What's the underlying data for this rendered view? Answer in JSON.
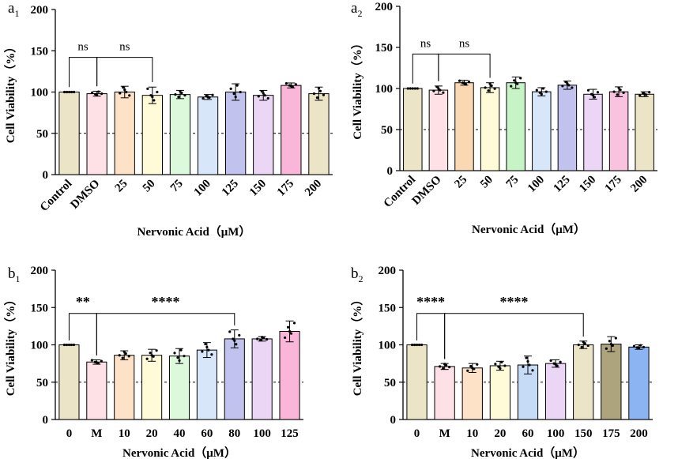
{
  "chart_data": [
    {
      "id": "a1",
      "panel_label": "a",
      "panel_sub": "1",
      "type": "bar",
      "ylabel": "Cell Viability（%）",
      "xlabel": "Nervonic Acid（μM）",
      "ylim": [
        0,
        200
      ],
      "yticks": [
        "0",
        "50",
        "100",
        "150",
        "200"
      ],
      "reference_line": 50,
      "rotate_labels": true,
      "categories": [
        "Control",
        "DMSO",
        "25",
        "50",
        "75",
        "100",
        "125",
        "150",
        "175",
        "200"
      ],
      "values": [
        100,
        98,
        100,
        96,
        97,
        94,
        100,
        96,
        108,
        98
      ],
      "errors": [
        0,
        3,
        7,
        10,
        5,
        3,
        10,
        6,
        3,
        8
      ],
      "colors": [
        "#ece4c7",
        "#fde1e6",
        "#fde2c8",
        "#fffbd9",
        "#dcf9dc",
        "#d8e6fa",
        "#c2c2ef",
        "#ecd6f6",
        "#f9b6d9",
        "#ece4c7"
      ],
      "brackets": [
        {
          "from": 0,
          "to": 1,
          "label": "ns"
        },
        {
          "from": 1,
          "to": 3,
          "label": "ns"
        }
      ]
    },
    {
      "id": "a2",
      "panel_label": "a",
      "panel_sub": "2",
      "type": "bar",
      "ylabel": "Cell Viability（%）",
      "xlabel": "Nervonic Acid（μM）",
      "ylim": [
        0,
        200
      ],
      "yticks": [
        "0",
        "50",
        "100",
        "150",
        "200"
      ],
      "reference_line": 50,
      "rotate_labels": true,
      "categories": [
        "Control",
        "DMSO",
        "25",
        "50",
        "75",
        "100",
        "125",
        "150",
        "175",
        "200"
      ],
      "values": [
        100,
        98,
        107,
        101,
        107,
        96,
        104,
        93,
        96,
        93
      ],
      "errors": [
        0,
        5,
        3,
        6,
        7,
        5,
        5,
        6,
        6,
        3
      ],
      "colors": [
        "#ece4c7",
        "#fde1e6",
        "#fbd8b4",
        "#fffbd9",
        "#c6f4c6",
        "#d8e6fa",
        "#c2c2ef",
        "#ecd6f6",
        "#f9c2df",
        "#ece4c7"
      ],
      "brackets": [
        {
          "from": 0,
          "to": 1,
          "label": "ns"
        },
        {
          "from": 1,
          "to": 3,
          "label": "ns"
        }
      ]
    },
    {
      "id": "b1",
      "panel_label": "b",
      "panel_sub": "1",
      "type": "bar",
      "ylabel": "Cell Viability（%）",
      "xlabel": "Nervonic Acid（μM）",
      "ylim": [
        0,
        200
      ],
      "yticks": [
        "0",
        "50",
        "100",
        "150",
        "200"
      ],
      "reference_line": 50,
      "rotate_labels": false,
      "categories": [
        "0",
        "M",
        "10",
        "20",
        "40",
        "60",
        "80",
        "100",
        "125"
      ],
      "values": [
        100,
        77,
        86,
        86,
        85,
        93,
        108,
        108,
        118
      ],
      "errors": [
        0,
        3,
        6,
        8,
        10,
        10,
        12,
        3,
        14
      ],
      "colors": [
        "#ece4c7",
        "#fde1e6",
        "#fde2c8",
        "#fffbd9",
        "#dcf9dc",
        "#d8e6fa",
        "#c2c2ef",
        "#ecd6f6",
        "#f9b6d9"
      ],
      "brackets": [
        {
          "from": 0,
          "to": 1,
          "label": "**"
        },
        {
          "from": 1,
          "to": 6,
          "label": "****"
        }
      ]
    },
    {
      "id": "b2",
      "panel_label": "b",
      "panel_sub": "2",
      "type": "bar",
      "ylabel": "Cell Viability（%）",
      "xlabel": "Nervonic Acid（μM）",
      "ylim": [
        0,
        200
      ],
      "yticks": [
        "0",
        "50",
        "100",
        "150",
        "200"
      ],
      "reference_line": 50,
      "rotate_labels": false,
      "categories": [
        "0",
        "M",
        "10",
        "20",
        "60",
        "100",
        "150",
        "175",
        "200"
      ],
      "values": [
        100,
        71,
        69,
        72,
        73,
        75,
        100,
        101,
        97
      ],
      "errors": [
        0,
        4,
        6,
        6,
        12,
        5,
        5,
        10,
        3
      ],
      "colors": [
        "#ece4c7",
        "#fde1e6",
        "#fde2c8",
        "#fffbd9",
        "#c6dcf6",
        "#ecd6f6",
        "#ece4c7",
        "#ada47e",
        "#8db4f2"
      ],
      "brackets": [
        {
          "from": 0,
          "to": 1,
          "label": "****"
        },
        {
          "from": 1,
          "to": 6,
          "label": "****"
        }
      ]
    }
  ]
}
